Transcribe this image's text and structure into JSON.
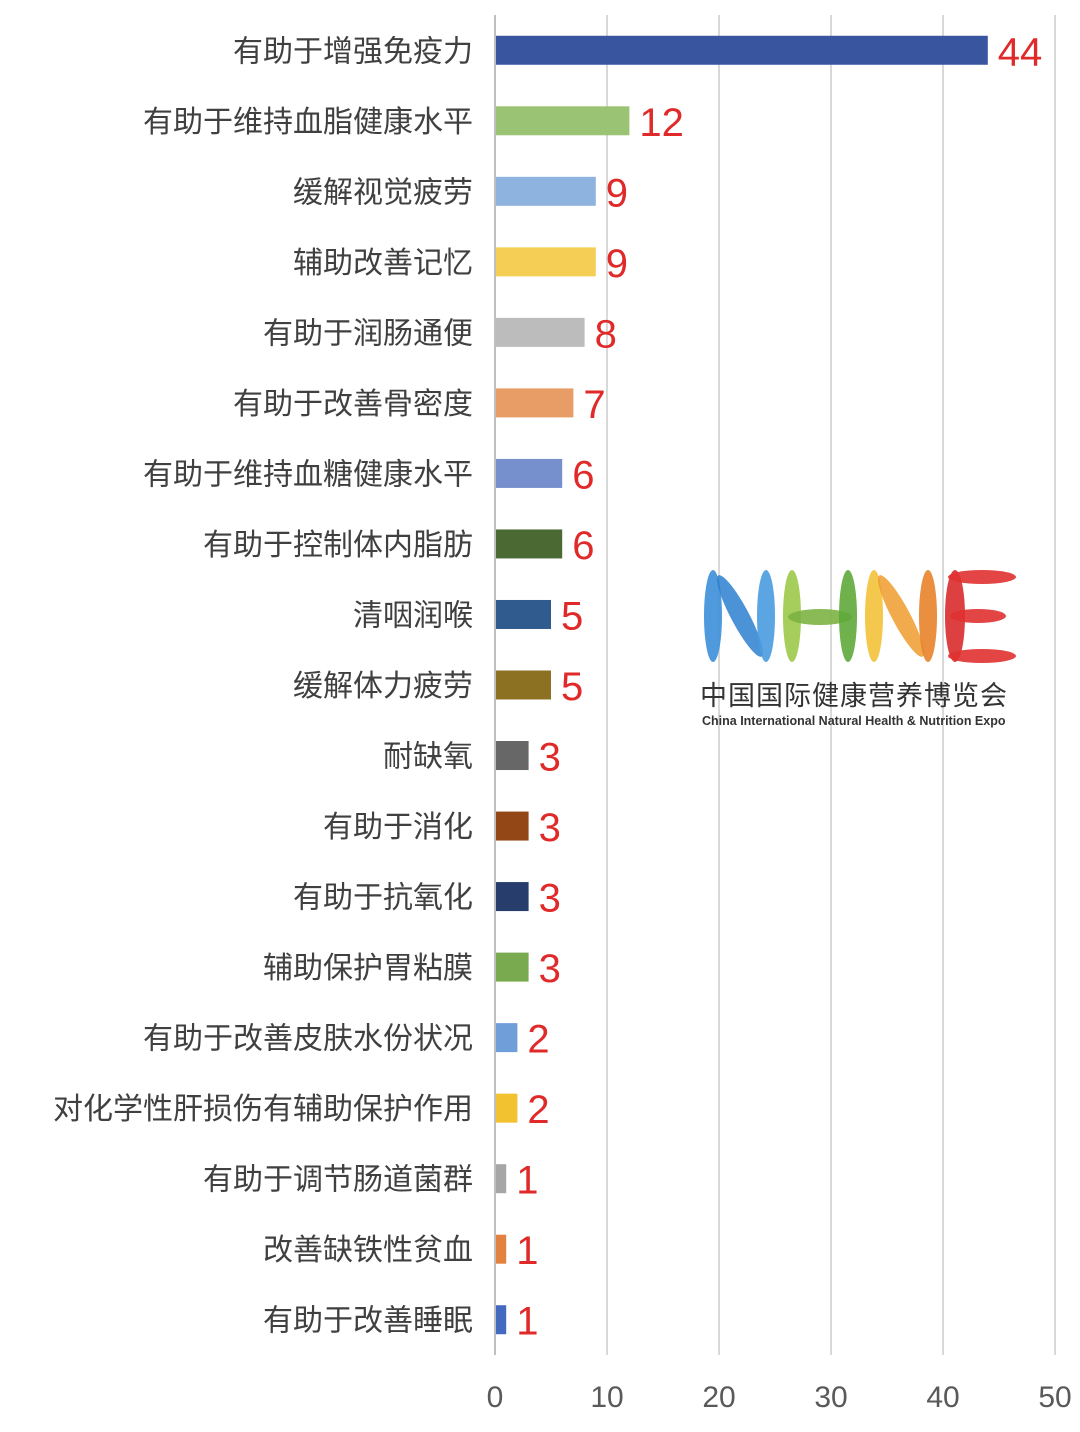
{
  "chart_data": {
    "type": "bar",
    "orientation": "horizontal",
    "categories": [
      "有助于增强免疫力",
      "有助于维持血脂健康水平",
      "缓解视觉疲劳",
      "辅助改善记忆",
      "有助于润肠通便",
      "有助于改善骨密度",
      "有助于维持血糖健康水平",
      "有助于控制体内脂肪",
      "清咽润喉",
      "缓解体力疲劳",
      "耐缺氧",
      "有助于消化",
      "有助于抗氧化",
      "辅助保护胃粘膜",
      "有助于改善皮肤水份状况",
      "对化学性肝损伤有辅助保护作用",
      "有助于调节肠道菌群",
      "改善缺铁性贫血",
      "有助于改善睡眠"
    ],
    "values": [
      44,
      12,
      9,
      9,
      8,
      7,
      6,
      6,
      5,
      5,
      3,
      3,
      3,
      3,
      2,
      2,
      1,
      1,
      1
    ],
    "colors": [
      "#3a55a0",
      "#9ac474",
      "#8fb3df",
      "#f5cf55",
      "#bcbcbc",
      "#e89c66",
      "#7590cc",
      "#4b6a33",
      "#2f5b8e",
      "#8c7122",
      "#676767",
      "#934716",
      "#273e6d",
      "#7aaa4f",
      "#6f9ed8",
      "#f2c231",
      "#a6a6a6",
      "#e2823e",
      "#4469c0"
    ],
    "xlim": [
      0,
      50
    ],
    "xticks": [
      "0",
      "10",
      "20",
      "30",
      "40",
      "50"
    ],
    "grid": true,
    "value_label_color": "#e02a2a"
  },
  "watermark": {
    "logo_text": "NHNE",
    "name_cn": "中国国际健康营养博览会",
    "name_en": "China International Natural Health & Nutrition Expo"
  }
}
